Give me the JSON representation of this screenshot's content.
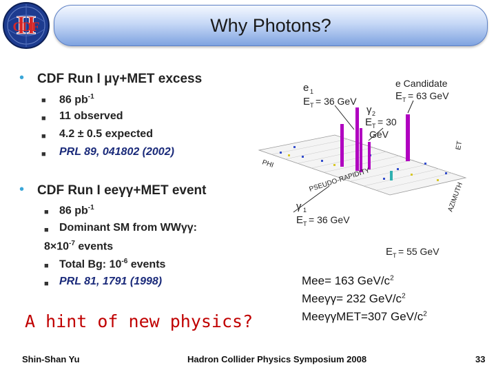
{
  "header": {
    "title": "Why Photons?",
    "logo_text": "CDF",
    "logo_roman": "II"
  },
  "bullets": [
    {
      "text": "CDF Run I μγ+MET excess",
      "items": [
        "86 pb",
        "11 observed",
        "4.2 ± 0.5 expected",
        "PRL 89, 041802 (2002)"
      ],
      "sup": "-1"
    },
    {
      "text": "CDF Run I eeγγ+MET event",
      "items": [
        "86 pb",
        "Dominant SM from WWγγ:",
        "8×10",
        "events",
        "Total Bg: 10",
        "events",
        "PRL 81, 1791 (1998)"
      ],
      "sups": [
        "-1",
        "-7",
        "-6"
      ]
    }
  ],
  "hint": "A hint of new physics?",
  "mass_lines": [
    {
      "label": "Mee= 163 GeV/c",
      "sup": "2"
    },
    {
      "label": "Meeγγ= 232 GeV/c",
      "sup": "2"
    },
    {
      "label": "MeeγγMET=307 GeV/c",
      "sup": "2"
    }
  ],
  "event_display": {
    "labels": [
      "e",
      "1",
      "E",
      "T",
      "= 36 GeV",
      "e Candidate",
      "E",
      "T",
      "= 63 GeV",
      "γ",
      "2",
      "E",
      "T",
      "= 30",
      "GeV",
      "γ",
      "1",
      "E",
      "T",
      "= 36 GeV",
      "E",
      "T",
      "= 55 GeV",
      "PSEUDO-RAPIDITY",
      "AZIMUTH",
      "PHI",
      "ET"
    ]
  },
  "footer": {
    "author": "Shin-Shan Yu",
    "conference": "Hadron Collider Physics Symposium 2008",
    "page": "33"
  },
  "colors": {
    "title_gradient_top": "#f4f8ff",
    "title_gradient_bottom": "#7fa3e0",
    "bullet": "#3aa6d8",
    "hint": "#c00000",
    "tower": "#b000c0"
  }
}
